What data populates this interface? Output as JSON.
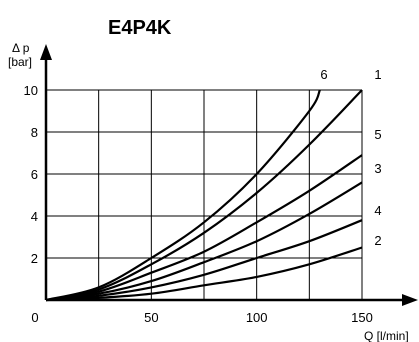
{
  "chart_data": {
    "type": "line",
    "title": "E4P4K",
    "ylabel": "Δ p",
    "yunit": "[bar]",
    "xlabel": "Q [l/min]",
    "xlim": [
      0,
      150
    ],
    "ylim": [
      0,
      10
    ],
    "x_ticks": [
      0,
      50,
      100,
      150
    ],
    "x_tick_labels": [
      "0",
      "50",
      "100",
      "150"
    ],
    "y_ticks": [
      2,
      4,
      6,
      8,
      10
    ],
    "y_tick_labels": [
      "2",
      "4",
      "6",
      "8",
      "10"
    ],
    "x_grid": [
      0,
      25,
      50,
      75,
      100,
      125,
      150
    ],
    "y_grid": [
      0,
      2,
      4,
      6,
      8,
      10
    ],
    "grid": true,
    "series": [
      {
        "name": "6",
        "x": [
          0,
          25,
          50,
          75,
          100,
          125,
          130
        ],
        "values": [
          0,
          0.6,
          2.0,
          3.7,
          6.0,
          9.0,
          10.0
        ]
      },
      {
        "name": "1",
        "x": [
          0,
          25,
          50,
          75,
          100,
          125,
          150
        ],
        "values": [
          0,
          0.5,
          1.7,
          3.2,
          5.1,
          7.4,
          10.0
        ]
      },
      {
        "name": "5",
        "x": [
          0,
          25,
          50,
          75,
          100,
          125,
          150
        ],
        "values": [
          0,
          0.4,
          1.3,
          2.3,
          3.7,
          5.2,
          6.9
        ]
      },
      {
        "name": "3",
        "x": [
          0,
          25,
          50,
          75,
          100,
          125,
          150
        ],
        "values": [
          0,
          0.3,
          0.9,
          1.8,
          2.8,
          4.1,
          5.6
        ]
      },
      {
        "name": "4",
        "x": [
          0,
          25,
          50,
          75,
          100,
          125,
          150
        ],
        "values": [
          0,
          0.2,
          0.6,
          1.2,
          2.0,
          2.8,
          3.8
        ]
      },
      {
        "name": "2",
        "x": [
          0,
          25,
          50,
          75,
          100,
          125,
          150
        ],
        "values": [
          0,
          0.1,
          0.3,
          0.7,
          1.1,
          1.7,
          2.5
        ]
      }
    ]
  }
}
